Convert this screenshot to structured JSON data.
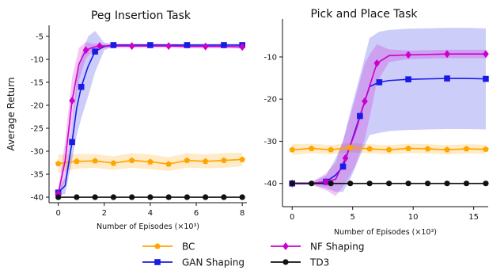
{
  "chart_data": [
    {
      "type": "line",
      "title": "Peg Insertion Task",
      "xlabel": "Number of Episodes (×10³)",
      "ylabel": "Average Return",
      "xlim": [
        -0.4,
        8.2
      ],
      "ylim": [
        -41.2,
        -2.6
      ],
      "xticks": [
        0,
        2,
        4,
        6,
        8
      ],
      "yticks": [
        -40,
        -35,
        -30,
        -25,
        -20,
        -15,
        -10,
        -5
      ],
      "grid": false,
      "series": [
        {
          "name": "BC",
          "color": "#FFA500",
          "marker": "pentagon",
          "x": [
            0,
            0.8,
            1.6,
            2.4,
            3.2,
            4.0,
            4.8,
            5.6,
            6.4,
            7.2,
            8.0
          ],
          "y": [
            -32.7,
            -32.2,
            -32.1,
            -32.6,
            -32.0,
            -32.3,
            -32.8,
            -32.0,
            -32.2,
            -32.0,
            -31.8
          ],
          "band": [
            2.0,
            1.6,
            1.5,
            1.5,
            1.6,
            1.6,
            1.5,
            1.6,
            1.5,
            1.6,
            1.5
          ]
        },
        {
          "name": "GAN Shaping",
          "color": "#1A1AE6",
          "marker": "square",
          "x": [
            0,
            0.3,
            0.6,
            0.8,
            1.0,
            1.3,
            1.6,
            2.0,
            2.4,
            3.2,
            4.0,
            4.8,
            5.6,
            6.4,
            7.2,
            8.0
          ],
          "y": [
            -39.0,
            -37.5,
            -28.0,
            -20.6,
            -16.0,
            -11.5,
            -8.3,
            -7.2,
            -6.9,
            -6.9,
            -6.9,
            -6.9,
            -6.9,
            -6.9,
            -6.9,
            -6.9
          ],
          "band": [
            0.6,
            1.8,
            4.0,
            6.0,
            6.8,
            6.5,
            4.5,
            0.8,
            0.3,
            0.3,
            0.3,
            0.3,
            0.3,
            0.3,
            0.3,
            0.3
          ]
        },
        {
          "name": "NF Shaping",
          "color": "#CC00CC",
          "marker": "diamond",
          "x": [
            0,
            0.3,
            0.6,
            0.9,
            1.2,
            1.5,
            1.8,
            2.4,
            3.2,
            4.0,
            4.8,
            5.6,
            6.4,
            7.2,
            8.0
          ],
          "y": [
            -39.2,
            -32.0,
            -19.0,
            -11.0,
            -8.0,
            -7.4,
            -7.1,
            -7.1,
            -7.1,
            -7.1,
            -7.1,
            -7.2,
            -7.2,
            -7.2,
            -7.3
          ],
          "band": [
            0.6,
            4.5,
            5.0,
            3.5,
            1.8,
            0.8,
            0.5,
            0.4,
            0.4,
            0.4,
            0.4,
            0.4,
            0.4,
            0.4,
            0.4
          ]
        },
        {
          "name": "TD3",
          "color": "#111111",
          "marker": "circle",
          "x": [
            0,
            0.8,
            1.6,
            2.4,
            3.2,
            4.0,
            4.8,
            5.6,
            6.4,
            7.2,
            8.0
          ],
          "y": [
            -40,
            -40,
            -40,
            -40,
            -40,
            -40,
            -40,
            -40,
            -40,
            -40,
            -40
          ],
          "band": [
            0,
            0,
            0,
            0,
            0,
            0,
            0,
            0,
            0,
            0,
            0
          ]
        }
      ]
    },
    {
      "type": "line",
      "title": "Pick and Place Task",
      "xlabel": "Number of Episodes (×10³)",
      "ylabel": "",
      "xlim": [
        -0.8,
        16.2
      ],
      "ylim": [
        -45.5,
        -1.0
      ],
      "xticks": [
        0,
        5,
        10,
        15
      ],
      "yticks": [
        -40,
        -30,
        -20,
        -10
      ],
      "grid": false,
      "series": [
        {
          "name": "BC",
          "color": "#FFA500",
          "marker": "pentagon",
          "x": [
            0,
            1.6,
            3.2,
            4.8,
            6.4,
            8.0,
            9.6,
            11.2,
            12.8,
            14.4,
            16.0
          ],
          "y": [
            -32.0,
            -31.7,
            -32.0,
            -31.5,
            -31.8,
            -32.0,
            -31.7,
            -31.8,
            -32.0,
            -31.8,
            -31.9
          ],
          "band": [
            1.3,
            1.1,
            1.1,
            1.1,
            1.1,
            1.1,
            1.1,
            1.1,
            1.1,
            1.1,
            1.1
          ]
        },
        {
          "name": "GAN Shaping",
          "color": "#1A1AE6",
          "marker": "square",
          "x": [
            0,
            1.6,
            2.8,
            3.6,
            4.2,
            4.8,
            5.6,
            6.4,
            7.2,
            8.0,
            9.6,
            11.2,
            12.8,
            14.4,
            16.0
          ],
          "y": [
            -40,
            -40,
            -39.6,
            -38.0,
            -36.0,
            -31.0,
            -24.0,
            -17.0,
            -16.0,
            -15.6,
            -15.3,
            -15.2,
            -15.1,
            -15.1,
            -15.2
          ],
          "band": [
            0.3,
            0.3,
            1.5,
            4.0,
            6.0,
            8.0,
            9.5,
            11.5,
            12.0,
            12.0,
            12.0,
            12.0,
            12.0,
            12.0,
            12.0
          ]
        },
        {
          "name": "NF Shaping",
          "color": "#CC00CC",
          "marker": "diamond",
          "x": [
            0,
            1.6,
            2.8,
            3.6,
            4.4,
            5.2,
            6.0,
            6.5,
            7.0,
            8.0,
            9.6,
            11.2,
            12.8,
            14.4,
            16.0
          ],
          "y": [
            -40,
            -40,
            -39.6,
            -39.0,
            -34.0,
            -28.0,
            -20.5,
            -16.0,
            -11.5,
            -9.7,
            -9.5,
            -9.4,
            -9.3,
            -9.3,
            -9.3
          ],
          "band": [
            0.3,
            0.3,
            2.0,
            4.0,
            6.0,
            8.0,
            9.0,
            7.0,
            4.5,
            1.5,
            1.0,
            1.0,
            1.0,
            1.0,
            1.0
          ]
        },
        {
          "name": "TD3",
          "color": "#111111",
          "marker": "circle",
          "x": [
            0,
            1.6,
            3.2,
            4.8,
            6.4,
            8.0,
            9.6,
            11.2,
            12.8,
            14.4,
            16.0
          ],
          "y": [
            -40,
            -40,
            -40,
            -40,
            -40,
            -40,
            -40,
            -40,
            -40,
            -40,
            -40
          ],
          "band": [
            0,
            0,
            0,
            0,
            0,
            0,
            0,
            0,
            0,
            0,
            0
          ]
        }
      ]
    }
  ],
  "legend": {
    "placement": "bottom",
    "items": [
      {
        "label": "BC",
        "color": "#FFA500",
        "marker": "pentagon"
      },
      {
        "label": "NF Shaping",
        "color": "#CC00CC",
        "marker": "diamond"
      },
      {
        "label": "GAN Shaping",
        "color": "#1A1AE6",
        "marker": "square"
      },
      {
        "label": "TD3",
        "color": "#111111",
        "marker": "circle"
      }
    ]
  }
}
